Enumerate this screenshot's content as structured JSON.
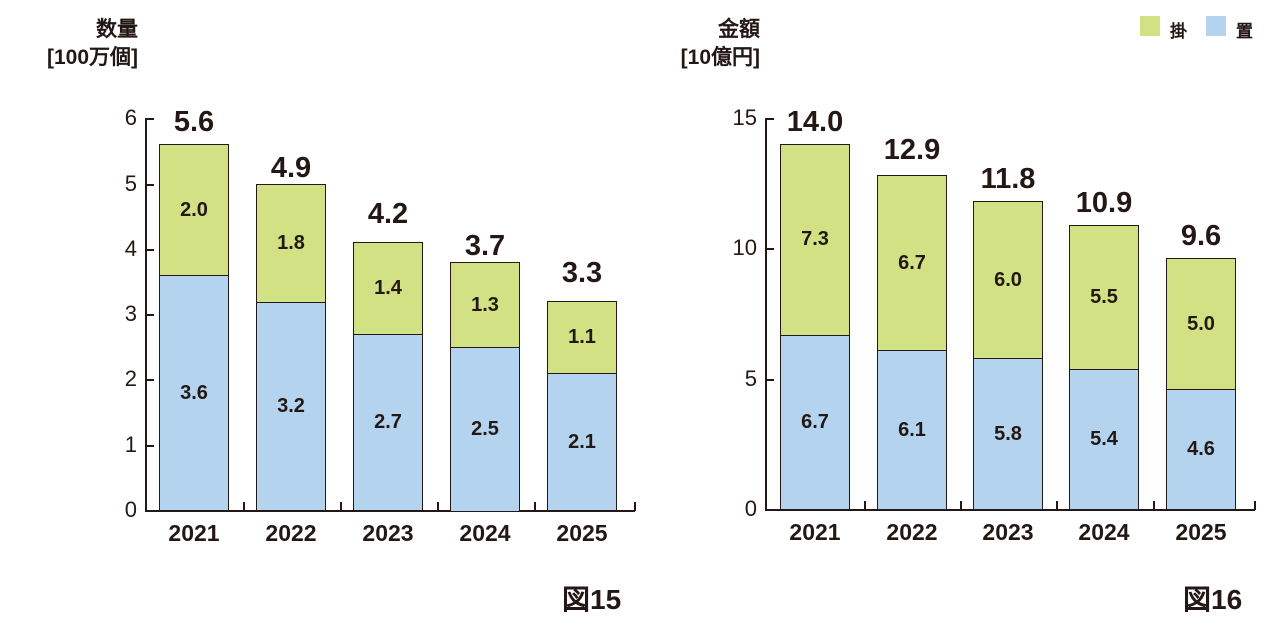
{
  "legend": {
    "items": [
      {
        "label": "掛",
        "color": "#d1e183"
      },
      {
        "label": "置",
        "color": "#b3d3ee"
      }
    ]
  },
  "charts": {
    "left": {
      "unit_line1": "数量",
      "unit_line2": "[100万個]",
      "figure_label": "図15",
      "yticks": [
        "0",
        "1",
        "2",
        "3",
        "4",
        "5",
        "6"
      ]
    },
    "right": {
      "unit_line1": "金額",
      "unit_line2": "[10億円]",
      "figure_label": "図16",
      "yticks": [
        "0",
        "5",
        "10",
        "15"
      ]
    }
  },
  "chart_data": [
    {
      "type": "bar",
      "stacked": true,
      "title": "図15",
      "ylabel": "数量 [100万個]",
      "xlabel": "",
      "ylim": [
        0,
        6
      ],
      "yticks": [
        0,
        1,
        2,
        3,
        4,
        5,
        6
      ],
      "categories": [
        "2021",
        "2022",
        "2023",
        "2024",
        "2025"
      ],
      "series": [
        {
          "name": "置",
          "color": "#b3d3ee",
          "values": [
            3.6,
            3.2,
            2.7,
            2.5,
            2.1
          ],
          "labels": [
            "3.6",
            "3.2",
            "2.7",
            "2.5",
            "2.1"
          ]
        },
        {
          "name": "掛",
          "color": "#d1e183",
          "values": [
            2.0,
            1.8,
            1.4,
            1.3,
            1.1
          ],
          "labels": [
            "2.0",
            "1.8",
            "1.4",
            "1.3",
            "1.1"
          ]
        }
      ],
      "totals": [
        5.6,
        4.9,
        4.2,
        3.7,
        3.3
      ],
      "total_labels": [
        "5.6",
        "4.9",
        "4.2",
        "3.7",
        "3.3"
      ],
      "legend_position": "top-right",
      "grid": false
    },
    {
      "type": "bar",
      "stacked": true,
      "title": "図16",
      "ylabel": "金額 [10億円]",
      "xlabel": "",
      "ylim": [
        0,
        15
      ],
      "yticks": [
        0,
        5,
        10,
        15
      ],
      "categories": [
        "2021",
        "2022",
        "2023",
        "2024",
        "2025"
      ],
      "series": [
        {
          "name": "置",
          "color": "#b3d3ee",
          "values": [
            6.7,
            6.1,
            5.8,
            5.4,
            4.6
          ],
          "labels": [
            "6.7",
            "6.1",
            "5.8",
            "5.4",
            "4.6"
          ]
        },
        {
          "name": "掛",
          "color": "#d1e183",
          "values": [
            7.3,
            6.7,
            6.0,
            5.5,
            5.0
          ],
          "labels": [
            "7.3",
            "6.7",
            "6.0",
            "5.5",
            "5.0"
          ]
        }
      ],
      "totals": [
        14.0,
        12.9,
        11.8,
        10.9,
        9.6
      ],
      "total_labels": [
        "14.0",
        "12.9",
        "11.8",
        "10.9",
        "9.6"
      ],
      "legend_position": "top-right",
      "grid": false
    }
  ]
}
